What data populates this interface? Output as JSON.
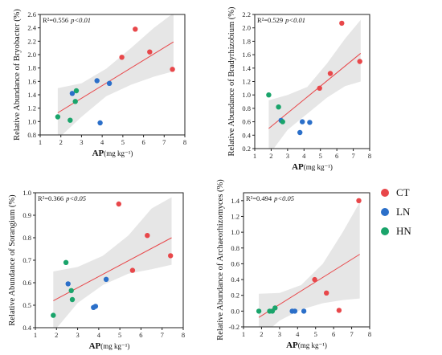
{
  "colors": {
    "CT": "#e8474a",
    "LN": "#2b6fc9",
    "HN": "#1aa46b",
    "fit": "#e8474a",
    "band": "#e6e6e6"
  },
  "legend": {
    "items": [
      {
        "key": "CT",
        "label": "CT"
      },
      {
        "key": "LN",
        "label": "LN"
      },
      {
        "key": "HN",
        "label": "HN"
      }
    ]
  },
  "chart_data": [
    {
      "type": "scatter",
      "ylabel": "Relative Abundance of Bryobacter (%)",
      "xlabel_main": "AP",
      "xlabel_unit": "(mg kg⁻¹)",
      "stat_r2": "R²=0.556",
      "stat_p": "p<0.01",
      "xlim": [
        1,
        8
      ],
      "ylim": [
        0.8,
        2.6
      ],
      "xticks": [
        1,
        2,
        3,
        4,
        5,
        6,
        7,
        8
      ],
      "yticks": [
        0.8,
        1.0,
        1.2,
        1.4,
        1.6,
        1.8,
        2.0,
        2.2,
        2.4,
        2.6
      ],
      "ytick_labels": [
        "0.8",
        "1.0",
        "1.2",
        "1.4",
        "1.6",
        "1.8",
        "2.0",
        "2.2",
        "2.4",
        "2.6"
      ],
      "fit": {
        "x": [
          1.85,
          7.45
        ],
        "y": [
          1.13,
          2.19
        ]
      },
      "band": {
        "x": [
          1.85,
          3.0,
          4.2,
          5.4,
          6.5,
          7.45
        ],
        "upper": [
          1.5,
          1.57,
          1.79,
          2.1,
          2.4,
          2.62
        ],
        "lower": [
          0.74,
          1.07,
          1.38,
          1.55,
          1.67,
          1.75
        ]
      },
      "series": [
        {
          "name": "CT",
          "x": [
            4.95,
            5.6,
            6.3,
            7.4
          ],
          "y": [
            1.96,
            2.38,
            2.04,
            1.78
          ]
        },
        {
          "name": "LN",
          "x": [
            2.55,
            3.75,
            3.9,
            4.35
          ],
          "y": [
            1.42,
            1.61,
            0.98,
            1.57
          ]
        },
        {
          "name": "HN",
          "x": [
            1.85,
            2.45,
            2.7,
            2.75
          ],
          "y": [
            1.07,
            1.02,
            1.3,
            1.46
          ]
        }
      ]
    },
    {
      "type": "scatter",
      "ylabel": "Relative Abundance of Bradyrhizobium (%)",
      "xlabel_main": "AP",
      "xlabel_unit": "(mg kg⁻¹)",
      "stat_r2": "R²=0.529",
      "stat_p": "p<0.01",
      "xlim": [
        1,
        8
      ],
      "ylim": [
        0.2,
        2.2
      ],
      "xticks": [
        1,
        2,
        3,
        4,
        5,
        6,
        7,
        8
      ],
      "yticks": [
        0.2,
        0.4,
        0.6,
        0.8,
        1.0,
        1.2,
        1.4,
        1.6,
        1.8,
        2.0,
        2.2
      ],
      "ytick_labels": [
        "0.2",
        "0.4",
        "0.6",
        "0.8",
        "1.0",
        "1.2",
        "1.4",
        "1.6",
        "1.8",
        "2.0",
        "2.2"
      ],
      "fit": {
        "x": [
          1.85,
          7.45
        ],
        "y": [
          0.5,
          1.62
        ]
      },
      "band": {
        "x": [
          1.85,
          3.0,
          4.2,
          5.4,
          6.5,
          7.45
        ],
        "upper": [
          0.92,
          1.0,
          1.12,
          1.47,
          1.84,
          2.12
        ],
        "lower": [
          0.1,
          0.48,
          0.72,
          0.96,
          1.13,
          1.2
        ]
      },
      "series": [
        {
          "name": "CT",
          "x": [
            4.95,
            5.6,
            6.3,
            7.4
          ],
          "y": [
            1.1,
            1.32,
            2.07,
            1.5
          ]
        },
        {
          "name": "LN",
          "x": [
            2.6,
            3.75,
            3.9,
            4.35
          ],
          "y": [
            0.62,
            0.44,
            0.6,
            0.59
          ]
        },
        {
          "name": "HN",
          "x": [
            1.85,
            2.45,
            2.7
          ],
          "y": [
            1.0,
            0.82,
            0.6
          ]
        }
      ]
    },
    {
      "type": "scatter",
      "ylabel": "Relative Abundance of Sorangium (%)",
      "xlabel_main": "AP",
      "xlabel_unit": "(mg kg⁻¹)",
      "stat_r2": "R²=0.366",
      "stat_p": "p<0.05",
      "xlim": [
        1,
        8
      ],
      "ylim": [
        0.4,
        1.0
      ],
      "xticks": [
        1,
        2,
        3,
        4,
        5,
        6,
        7,
        8
      ],
      "yticks": [
        0.4,
        0.5,
        0.6,
        0.7,
        0.8,
        0.9,
        1.0
      ],
      "ytick_labels": [
        "0.4",
        "0.5",
        "0.6",
        "0.7",
        "0.8",
        "0.9",
        "1.0"
      ],
      "fit": {
        "x": [
          1.85,
          7.45
        ],
        "y": [
          0.52,
          0.8
        ]
      },
      "band": {
        "x": [
          1.85,
          3.0,
          4.2,
          5.4,
          6.5,
          7.45
        ],
        "upper": [
          0.65,
          0.67,
          0.72,
          0.81,
          0.93,
          0.98
        ],
        "lower": [
          0.38,
          0.51,
          0.59,
          0.64,
          0.66,
          0.68
        ]
      },
      "series": [
        {
          "name": "CT",
          "x": [
            4.95,
            5.6,
            6.3,
            7.4
          ],
          "y": [
            0.95,
            0.655,
            0.81,
            0.72
          ]
        },
        {
          "name": "LN",
          "x": [
            2.55,
            3.75,
            3.85,
            4.35
          ],
          "y": [
            0.595,
            0.49,
            0.495,
            0.615
          ]
        },
        {
          "name": "HN",
          "x": [
            1.85,
            2.45,
            2.7,
            2.75
          ],
          "y": [
            0.455,
            0.69,
            0.565,
            0.525
          ]
        }
      ]
    },
    {
      "type": "scatter",
      "ylabel": "Relative Abundance of Archaeorhizomyces (%)",
      "xlabel_main": "AP",
      "xlabel_unit": "(mg kg⁻¹)",
      "stat_r2": "R²=0.494",
      "stat_p": "p<0.05",
      "xlim": [
        1,
        8
      ],
      "ylim": [
        -0.2,
        1.5
      ],
      "xticks": [
        1,
        2,
        3,
        4,
        5,
        6,
        7,
        8
      ],
      "yticks": [
        -0.2,
        0.0,
        0.2,
        0.4,
        0.6,
        0.8,
        1.0,
        1.2,
        1.4
      ],
      "ytick_labels": [
        "-0.2",
        "0.0",
        "0.2",
        "0.4",
        "0.6",
        "0.8",
        "1.0",
        "1.2",
        "1.4"
      ],
      "fit": {
        "x": [
          1.85,
          7.45
        ],
        "y": [
          -0.08,
          0.72
        ]
      },
      "band": {
        "x": [
          1.85,
          3.0,
          4.2,
          5.4,
          6.5,
          7.45
        ],
        "upper": [
          0.22,
          0.23,
          0.33,
          0.6,
          1.0,
          1.38
        ],
        "lower": [
          -0.35,
          -0.12,
          0.02,
          0.1,
          0.14,
          0.16
        ]
      },
      "series": [
        {
          "name": "CT",
          "x": [
            4.95,
            5.6,
            6.3,
            7.4
          ],
          "y": [
            0.4,
            0.23,
            0.01,
            1.4
          ]
        },
        {
          "name": "LN",
          "x": [
            3.7,
            3.85,
            4.35
          ],
          "y": [
            0.0,
            0.0,
            0.0
          ]
        },
        {
          "name": "HN",
          "x": [
            1.85,
            2.45,
            2.6,
            2.75
          ],
          "y": [
            0.0,
            0.0,
            0.0,
            0.04
          ]
        }
      ]
    }
  ]
}
